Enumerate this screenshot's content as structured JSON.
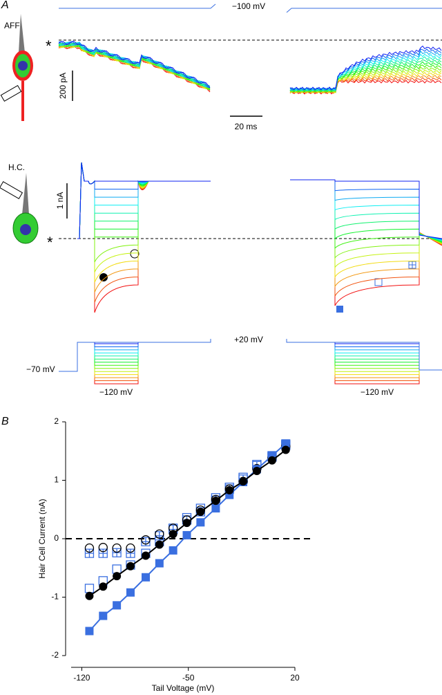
{
  "panel_a": {
    "label": "A",
    "aff_label": "AFF",
    "aff_star": "*",
    "aff_scale": "200 pA",
    "hold_top": "−100 mV",
    "time_scale": "20 ms",
    "hc_label": "H.C.",
    "hc_scale": "1 nA",
    "hc_star": "*",
    "step_top": "+20 mV",
    "hold_low": "−70 mV",
    "step_left": "−120 mV",
    "step_right": "−120 mV"
  },
  "chart_data": {
    "type": "scatter",
    "panel_label": "B",
    "x_label": "Tail Voltage (mV)",
    "y_label": "Hair Cell Current (nA)",
    "xlim": [
      -127,
      20
    ],
    "xticks": [
      -120,
      -50,
      20
    ],
    "ylim": [
      -2,
      2
    ],
    "yticks": [
      -2,
      -1,
      0,
      1,
      2
    ],
    "zero_line": true,
    "x": [
      -115,
      -106,
      -97,
      -88,
      -78,
      -69,
      -60,
      -51,
      -42,
      -32,
      -23,
      -14,
      -5,
      5,
      14
    ],
    "series": [
      {
        "marker": "square-open",
        "color": "#3a6fe0",
        "line": false,
        "values": [
          -0.85,
          -0.72,
          -0.52,
          -0.45,
          -0.25,
          -0.05,
          0.18,
          0.36,
          0.52,
          0.7,
          0.88,
          1.05,
          1.27,
          1.42,
          1.62
        ]
      },
      {
        "marker": "square-plus",
        "color": "#3a6fe0",
        "line": false,
        "values": [
          -0.25,
          -0.25,
          -0.24,
          -0.25,
          -0.05,
          0.05,
          0.16,
          0.32,
          0.46,
          0.66,
          0.85,
          1.02,
          1.25,
          1.4,
          1.6
        ]
      },
      {
        "marker": "circle-open",
        "color": "#000000",
        "line": false,
        "values": [
          -0.16,
          -0.15,
          -0.16,
          -0.16,
          -0.02,
          0.08,
          0.18,
          0.32,
          0.49,
          0.67,
          0.85,
          0.98,
          1.2,
          1.38,
          1.58
        ]
      },
      {
        "marker": "square-filled",
        "color": "#3a6fe0",
        "line": true,
        "values": [
          -1.58,
          -1.32,
          -1.14,
          -0.92,
          -0.66,
          -0.42,
          -0.2,
          0.06,
          0.28,
          0.52,
          0.75,
          0.97,
          1.19,
          1.42,
          1.63
        ]
      },
      {
        "marker": "circle-filled",
        "color": "#000000",
        "line": true,
        "values": [
          -0.98,
          -0.82,
          -0.64,
          -0.47,
          -0.29,
          -0.1,
          0.08,
          0.27,
          0.46,
          0.65,
          0.83,
          0.98,
          1.16,
          1.34,
          1.52
        ]
      }
    ]
  }
}
